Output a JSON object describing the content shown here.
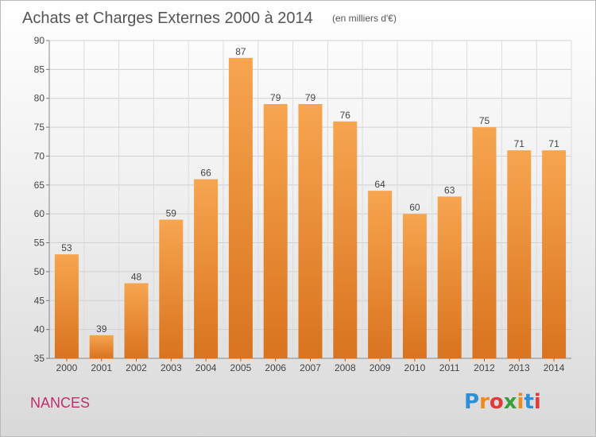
{
  "chart_data": {
    "type": "bar",
    "title": "Achats et Charges Externes 2000 à 2014",
    "subtitle": "(en milliers d'€)",
    "categories": [
      "2000",
      "2001",
      "2002",
      "2003",
      "2004",
      "2005",
      "2006",
      "2007",
      "2008",
      "2009",
      "2010",
      "2011",
      "2012",
      "2013",
      "2014"
    ],
    "values": [
      53,
      39,
      48,
      59,
      66,
      87,
      79,
      79,
      76,
      64,
      60,
      63,
      75,
      71,
      71
    ],
    "ylim": [
      35,
      90
    ],
    "yticks": [
      35,
      40,
      45,
      50,
      55,
      60,
      65,
      70,
      75,
      80,
      85,
      90
    ],
    "grid": true,
    "bar_color_top": "#f7a54f",
    "bar_color_bottom": "#d9731f"
  },
  "commune": "NANCES",
  "logo": {
    "text": "Proxiti",
    "letters": [
      {
        "ch": "P",
        "color": "#2e8fd8"
      },
      {
        "ch": "r",
        "color": "#f08a1c"
      },
      {
        "ch": "o",
        "color": "#e23a3a"
      },
      {
        "ch": "x",
        "color": "#3a9f3a"
      },
      {
        "ch": "i",
        "color": "#f08a1c"
      },
      {
        "ch": "t",
        "color": "#2e8fd8"
      },
      {
        "ch": "i",
        "color": "#e23a3a"
      }
    ]
  }
}
